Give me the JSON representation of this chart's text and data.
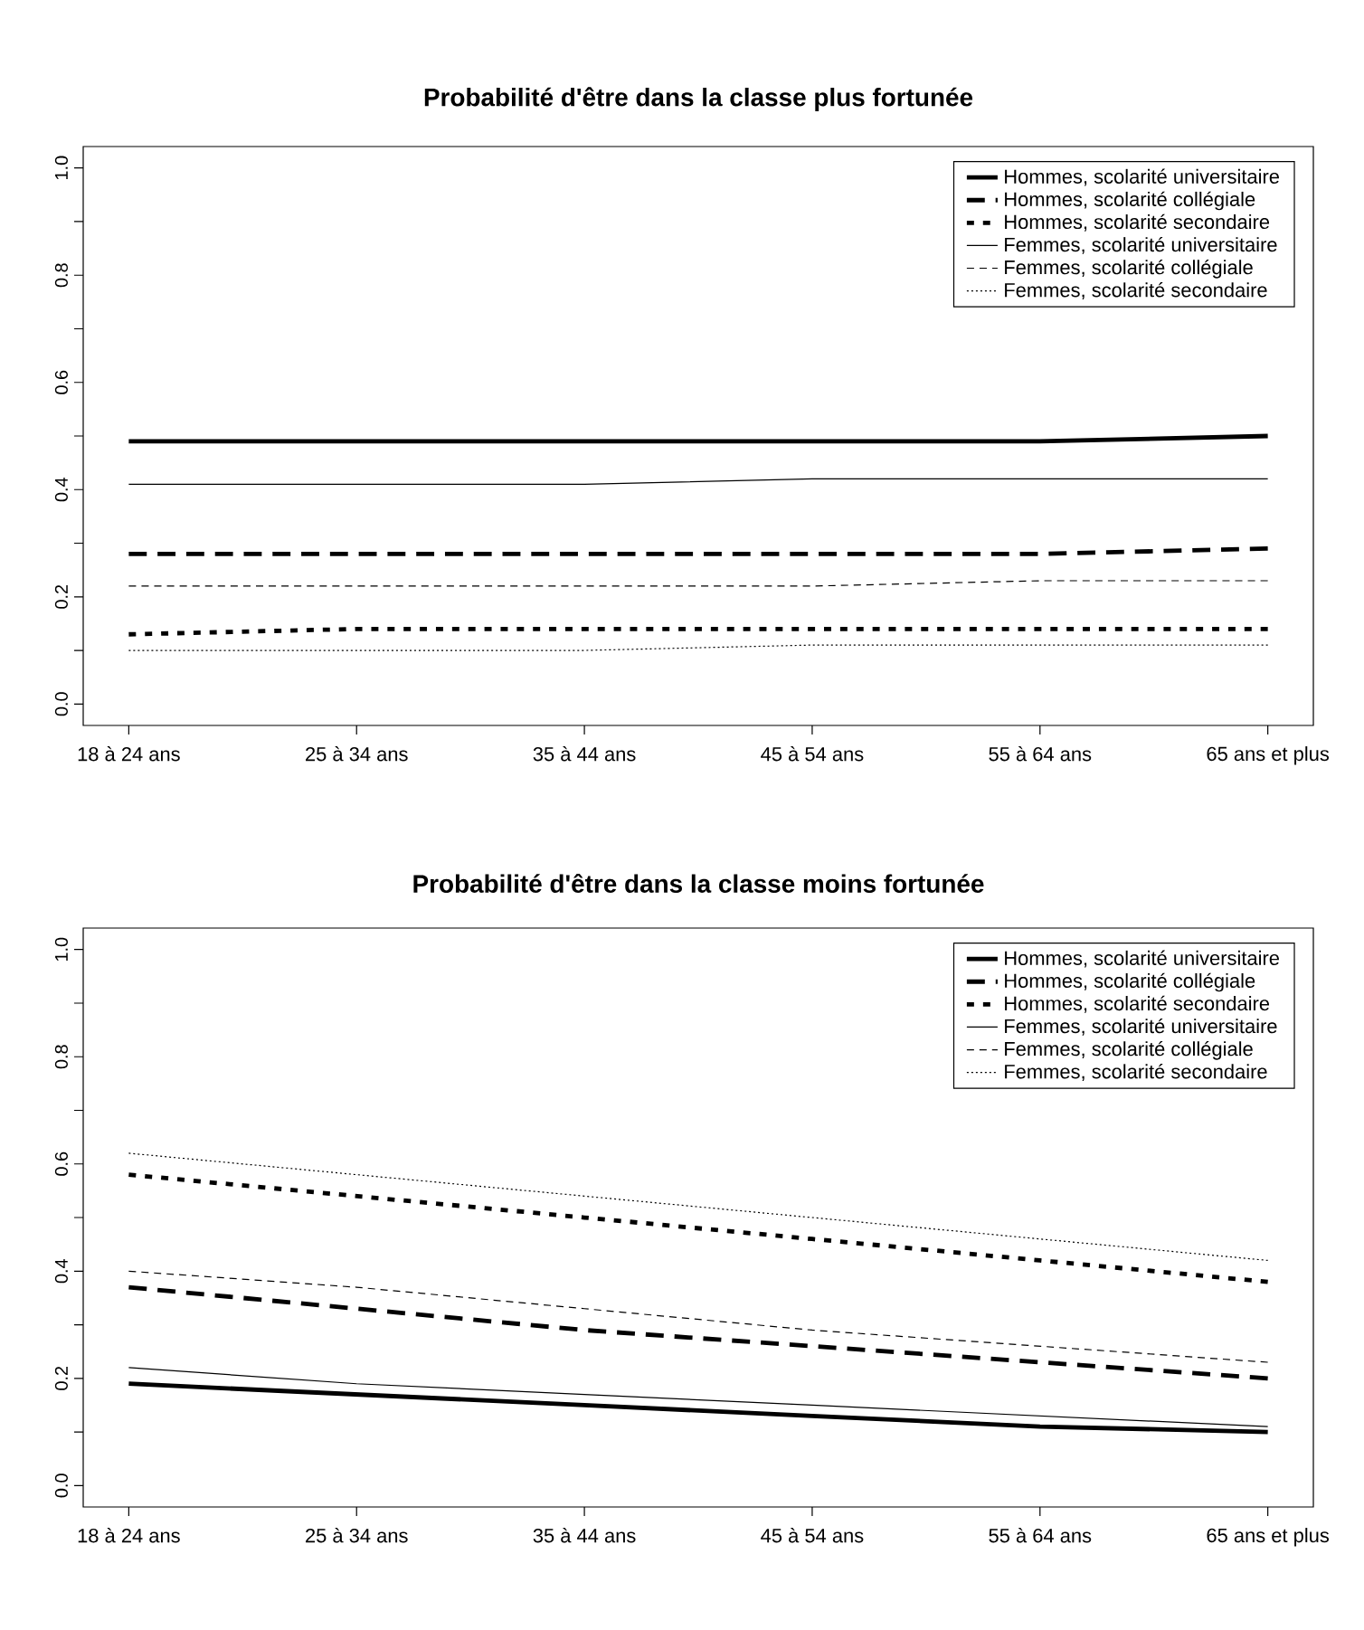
{
  "chart_data": [
    {
      "type": "line",
      "title": "Probabilité d'être dans la classe plus fortunée",
      "categories": [
        "18 à 24 ans",
        "25 à 34 ans",
        "35 à 44 ans",
        "45 à 54 ans",
        "55 à 64 ans",
        "65 ans et plus"
      ],
      "ylim": [
        -0.04,
        1.04
      ],
      "yticks": [
        {
          "value": 0.0,
          "label": "0.0"
        },
        {
          "value": 0.1,
          "label": null
        },
        {
          "value": 0.2,
          "label": "0.2"
        },
        {
          "value": 0.3,
          "label": null
        },
        {
          "value": 0.4,
          "label": "0.4"
        },
        {
          "value": 0.5,
          "label": null
        },
        {
          "value": 0.6,
          "label": "0.6"
        },
        {
          "value": 0.7,
          "label": null
        },
        {
          "value": 0.8,
          "label": "0.8"
        },
        {
          "value": 0.9,
          "label": null
        },
        {
          "value": 1.0,
          "label": "1.0"
        }
      ],
      "legend": "top right",
      "series": [
        {
          "name": "Hommes, scolarité universitaire",
          "color": "#000000",
          "line_style": "solid",
          "values": [
            0.49,
            0.49,
            0.49,
            0.49,
            0.49,
            0.5
          ]
        },
        {
          "name": "Hommes, scolarité collégiale",
          "color": "#000000",
          "line_style": "dashed",
          "values": [
            0.28,
            0.28,
            0.28,
            0.28,
            0.28,
            0.29
          ]
        },
        {
          "name": "Hommes, scolarité secondaire",
          "color": "#000000",
          "line_style": "dotted",
          "values": [
            0.13,
            0.14,
            0.14,
            0.14,
            0.14,
            0.14
          ]
        },
        {
          "name": "Femmes, scolarité universitaire",
          "color": "#000000",
          "line_style": "solid",
          "values": [
            0.41,
            0.41,
            0.41,
            0.42,
            0.42,
            0.42
          ]
        },
        {
          "name": "Femmes, scolarité collégiale",
          "color": "#000000",
          "line_style": "dashed",
          "values": [
            0.22,
            0.22,
            0.22,
            0.22,
            0.23,
            0.23
          ]
        },
        {
          "name": "Femmes, scolarité secondaire",
          "color": "#000000",
          "line_style": "dotted",
          "values": [
            0.1,
            0.1,
            0.1,
            0.11,
            0.11,
            0.11
          ]
        }
      ]
    },
    {
      "type": "line",
      "title": "Probabilité d'être dans la classe moins fortunée",
      "categories": [
        "18 à 24 ans",
        "25 à 34 ans",
        "35 à 44 ans",
        "45 à 54 ans",
        "55 à 64 ans",
        "65 ans et plus"
      ],
      "ylim": [
        -0.04,
        1.04
      ],
      "yticks": [
        {
          "value": 0.0,
          "label": "0.0"
        },
        {
          "value": 0.1,
          "label": null
        },
        {
          "value": 0.2,
          "label": "0.2"
        },
        {
          "value": 0.3,
          "label": null
        },
        {
          "value": 0.4,
          "label": "0.4"
        },
        {
          "value": 0.5,
          "label": null
        },
        {
          "value": 0.6,
          "label": "0.6"
        },
        {
          "value": 0.7,
          "label": null
        },
        {
          "value": 0.8,
          "label": "0.8"
        },
        {
          "value": 0.9,
          "label": null
        },
        {
          "value": 1.0,
          "label": "1.0"
        }
      ],
      "legend": "top right",
      "series": [
        {
          "name": "Hommes, scolarité universitaire",
          "color": "#000000",
          "line_style": "solid",
          "values": [
            0.19,
            0.17,
            0.15,
            0.13,
            0.11,
            0.1
          ]
        },
        {
          "name": "Hommes, scolarité collégiale",
          "color": "#000000",
          "line_style": "dashed",
          "values": [
            0.37,
            0.33,
            0.29,
            0.26,
            0.23,
            0.2
          ]
        },
        {
          "name": "Hommes, scolarité secondaire",
          "color": "#000000",
          "line_style": "dotted",
          "values": [
            0.58,
            0.54,
            0.5,
            0.46,
            0.42,
            0.38
          ]
        },
        {
          "name": "Femmes, scolarité universitaire",
          "color": "#000000",
          "line_style": "solid",
          "values": [
            0.22,
            0.19,
            0.17,
            0.15,
            0.13,
            0.11
          ]
        },
        {
          "name": "Femmes, scolarité collégiale",
          "color": "#000000",
          "line_style": "dashed",
          "values": [
            0.4,
            0.37,
            0.33,
            0.29,
            0.26,
            0.23
          ]
        },
        {
          "name": "Femmes, scolarité secondaire",
          "color": "#000000",
          "line_style": "dotted",
          "values": [
            0.62,
            0.58,
            0.54,
            0.5,
            0.46,
            0.42
          ]
        }
      ]
    }
  ]
}
